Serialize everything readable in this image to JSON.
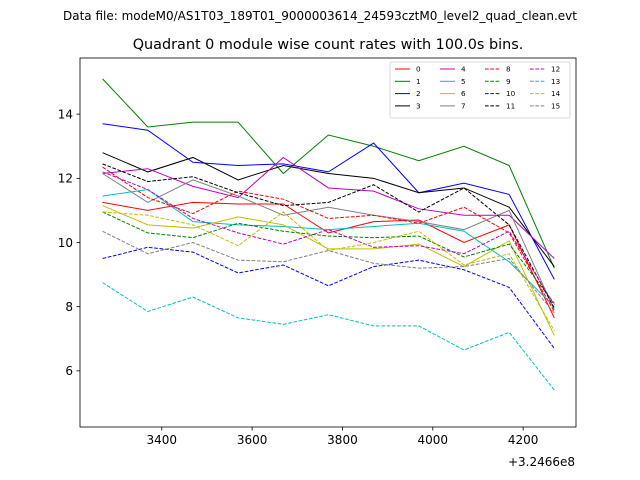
{
  "figure": {
    "suptitle": "Data file: modeM0/AS1T03_189T01_9000003614_24593cztM0_level2_quad_clean.evt"
  },
  "chart_data": {
    "type": "line",
    "title": "Quadrant 0 module wise count rates with 100.0s bins.",
    "xlabel": "",
    "ylabel": "",
    "x_offset_label": "+3.2466e8",
    "xlim": [
      3219,
      4317
    ],
    "ylim": [
      4.25,
      15.75
    ],
    "xticks": [
      3400,
      3600,
      3800,
      4000,
      4200
    ],
    "xtick_labels": [
      "3400",
      "3600",
      "3800",
      "4000",
      "4200"
    ],
    "yticks": [
      6,
      8,
      10,
      12,
      14
    ],
    "ytick_labels": [
      "6",
      "8",
      "10",
      "12",
      "14"
    ],
    "legend_location": "upper-right",
    "legend_columns": 4,
    "x": [
      3269,
      3369,
      3469,
      3569,
      3669,
      3769,
      3869,
      3969,
      4069,
      4169,
      4269
    ],
    "series": [
      {
        "name": "0",
        "color": "#ff0000",
        "dash": "solid",
        "values": [
          11.25,
          11.0,
          11.25,
          11.2,
          11.2,
          10.3,
          10.65,
          10.7,
          10.0,
          10.55,
          7.65
        ]
      },
      {
        "name": "1",
        "color": "#008000",
        "dash": "solid",
        "values": [
          15.1,
          13.6,
          13.75,
          13.75,
          12.15,
          13.35,
          13.0,
          12.55,
          13.0,
          12.4,
          9.2
        ]
      },
      {
        "name": "2",
        "color": "#0000ff",
        "dash": "solid",
        "values": [
          13.7,
          13.5,
          12.5,
          12.4,
          12.45,
          12.2,
          13.1,
          11.55,
          11.85,
          11.5,
          8.85
        ]
      },
      {
        "name": "3",
        "color": "#000000",
        "dash": "solid",
        "values": [
          12.8,
          12.2,
          12.65,
          11.95,
          12.4,
          12.15,
          12.0,
          11.55,
          11.7,
          11.1,
          9.25
        ]
      },
      {
        "name": "4",
        "color": "#c000c0",
        "dash": "solid",
        "values": [
          12.15,
          12.3,
          11.75,
          11.4,
          12.65,
          11.7,
          11.6,
          11.05,
          10.85,
          10.85,
          9.5
        ]
      },
      {
        "name": "5",
        "color": "#00bfbf",
        "dash": "solid",
        "values": [
          11.45,
          11.65,
          10.65,
          10.55,
          10.5,
          10.4,
          10.5,
          10.6,
          10.35,
          9.4,
          8.0
        ]
      },
      {
        "name": "6",
        "color": "#bfbf00",
        "dash": "solid",
        "values": [
          11.15,
          10.55,
          10.45,
          10.8,
          10.55,
          9.8,
          9.8,
          9.95,
          9.25,
          10.05,
          7.1
        ]
      },
      {
        "name": "7",
        "color": "#808080",
        "dash": "solid",
        "values": [
          12.15,
          11.25,
          11.95,
          11.45,
          10.85,
          11.1,
          10.85,
          10.65,
          10.4,
          11.0,
          7.9
        ]
      },
      {
        "name": "8",
        "color": "#ff0000",
        "dash": "dashed",
        "values": [
          12.35,
          11.4,
          10.9,
          11.6,
          11.35,
          10.75,
          10.85,
          10.6,
          11.1,
          10.3,
          7.85
        ]
      },
      {
        "name": "9",
        "color": "#008000",
        "dash": "dashed",
        "values": [
          10.95,
          10.3,
          10.15,
          10.6,
          10.35,
          10.2,
          10.15,
          10.2,
          9.55,
          9.95,
          8.1
        ]
      },
      {
        "name": "10",
        "color": "#0000ff",
        "dash": "dashed",
        "values": [
          9.5,
          9.85,
          9.7,
          9.05,
          9.3,
          8.65,
          9.25,
          9.45,
          9.15,
          8.6,
          6.7
        ]
      },
      {
        "name": "11",
        "color": "#000000",
        "dash": "dashed",
        "values": [
          12.45,
          11.9,
          12.05,
          11.55,
          11.15,
          11.25,
          11.8,
          10.95,
          11.7,
          10.55,
          7.95
        ]
      },
      {
        "name": "12",
        "color": "#c000c0",
        "dash": "dashed",
        "values": [
          12.2,
          11.65,
          10.75,
          10.3,
          9.95,
          10.4,
          9.85,
          9.9,
          9.65,
          10.35,
          8.05
        ]
      },
      {
        "name": "13",
        "color": "#00bfbf",
        "dash": "dashed",
        "values": [
          8.75,
          7.85,
          8.3,
          7.65,
          7.45,
          7.75,
          7.4,
          7.4,
          6.65,
          7.2,
          5.4
        ]
      },
      {
        "name": "14",
        "color": "#bfbf00",
        "dash": "dashed",
        "values": [
          10.95,
          10.85,
          10.55,
          9.9,
          10.95,
          9.75,
          10.0,
          10.35,
          9.3,
          9.65,
          7.25
        ]
      },
      {
        "name": "15",
        "color": "#808080",
        "dash": "dashed",
        "values": [
          10.35,
          9.65,
          10.0,
          9.45,
          9.4,
          9.75,
          9.35,
          9.2,
          9.25,
          9.5,
          7.8
        ]
      }
    ]
  }
}
